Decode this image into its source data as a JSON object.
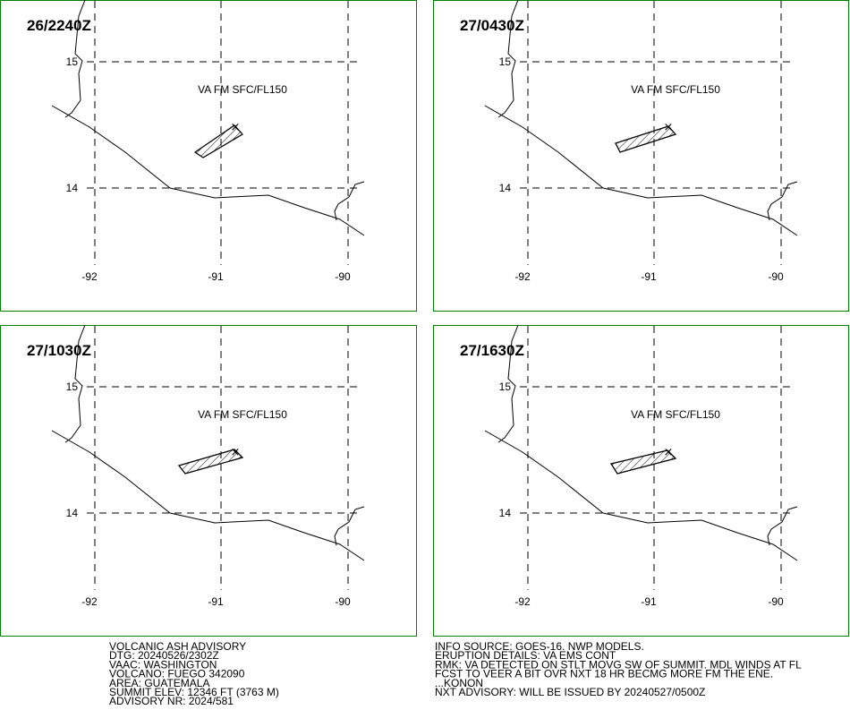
{
  "panels": [
    {
      "time": "26/2240Z",
      "label": "VA FM SFC/FL150"
    },
    {
      "time": "27/0430Z",
      "label": "VA FM SFC/FL150"
    },
    {
      "time": "27/1030Z",
      "label": "VA FM SFC/FL150"
    },
    {
      "time": "27/1630Z",
      "label": "VA FM SFC/FL150"
    }
  ],
  "grid": {
    "lat_labels": [
      "15",
      "14"
    ],
    "lon_labels": [
      "-92",
      "-91",
      "-90"
    ]
  },
  "advisory": {
    "left": [
      "VOLCANIC ASH ADVISORY",
      "DTG: 20240526/2302Z",
      "VAAC: WASHINGTON",
      "VOLCANO: FUEGO 342090",
      "AREA: GUATEMALA",
      "SUMMIT ELEV: 12346 FT (3763 M)",
      "ADVISORY NR: 2024/581"
    ],
    "right": [
      "INFO SOURCE: GOES-16. NWP MODELS.",
      "ERUPTION DETAILS: VA EMS CONT",
      "RMK: VA DETECTED ON STLT MOVG SW OF SUMMIT. MDL WINDS AT FL",
      "FCST TO VEER A BIT OVR NXT 18 HR BECMG MORE FM THE ENE.",
      "...KONON",
      "NXT ADVISORY: WILL BE ISSUED BY 20240527/0500Z"
    ]
  }
}
